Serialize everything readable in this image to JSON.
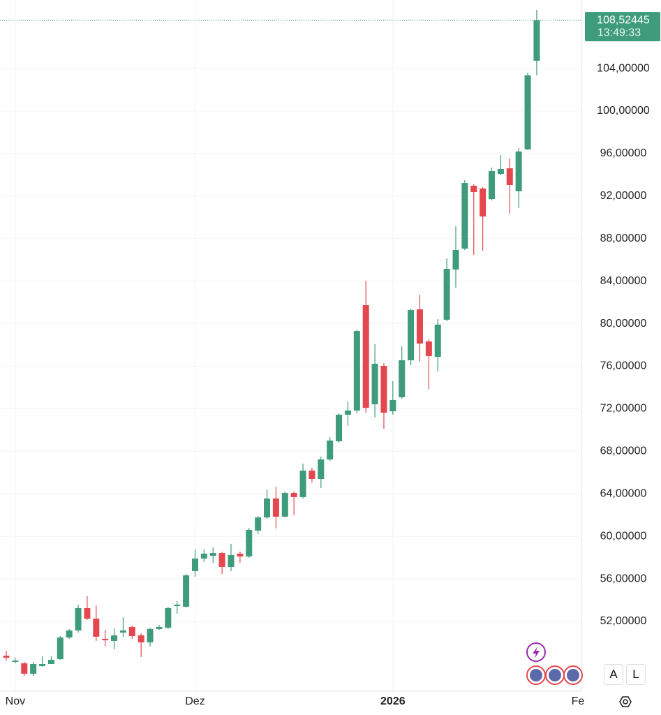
{
  "chart_data": {
    "type": "candlestick",
    "categories": [
      null,
      "Nov",
      null,
      null,
      null,
      null,
      null,
      null,
      null,
      null,
      null,
      null,
      null,
      null,
      null,
      null,
      null,
      null,
      null,
      null,
      null,
      "Dez",
      null,
      null,
      null,
      null,
      null,
      null,
      null,
      null,
      null,
      null,
      null,
      null,
      null,
      null,
      null,
      null,
      null,
      null,
      null,
      null,
      null,
      "2026",
      null,
      null,
      null,
      null,
      null,
      null,
      null,
      null,
      null,
      null,
      null,
      null,
      null,
      null,
      null,
      null,
      null,
      null,
      null,
      null,
      "Fe"
    ],
    "open": [
      48.78,
      48.19,
      48.06,
      47.08,
      47.8,
      47.99,
      48.45,
      50.49,
      51.15,
      53.25,
      52.26,
      50.36,
      50.16,
      50.95,
      51.47,
      50.69,
      50.03,
      51.28,
      51.41,
      53.44,
      53.38,
      56.73,
      57.91,
      58.17,
      58.43,
      57.12,
      58.37,
      58.11,
      60.54,
      61.78,
      63.56,
      61.85,
      64.08,
      63.69,
      66.18,
      65.39,
      67.23,
      68.94,
      71.44,
      71.83,
      81.74,
      72.42,
      76.03,
      71.76,
      73.08,
      76.56,
      81.35,
      78.33,
      76.88,
      80.37,
      85.09,
      87.06,
      92.97,
      92.71,
      91.72,
      94.09,
      94.61,
      92.45,
      96.39,
      104.73,
      null,
      null,
      null,
      null,
      null
    ],
    "high": [
      49.24,
      48.59,
      48.19,
      48.19,
      48.72,
      48.72,
      50.62,
      51.28,
      53.58,
      54.36,
      53.51,
      51.21,
      51.34,
      52.39,
      51.61,
      50.88,
      51.41,
      51.67,
      53.38,
      53.9,
      56.46,
      58.76,
      58.76,
      58.96,
      58.57,
      59.29,
      58.57,
      60.8,
      61.91,
      64.41,
      64.67,
      64.21,
      64.21,
      66.84,
      66.45,
      67.5,
      69.33,
      71.57,
      72.68,
      79.45,
      84.04,
      78.07,
      76.3,
      74.59,
      77.87,
      81.42,
      82.73,
      78.53,
      80.43,
      86.14,
      89.16,
      93.5,
      93.1,
      92.84,
      94.68,
      95.86,
      95.53,
      96.52,
      103.61,
      109.52,
      null,
      null,
      null,
      null,
      null
    ],
    "low": [
      48.32,
      48.06,
      46.88,
      46.88,
      47.73,
      47.99,
      48.39,
      50.36,
      50.95,
      52.13,
      50.16,
      49.64,
      49.37,
      50.56,
      50.36,
      48.65,
      49.64,
      51.21,
      51.28,
      52.72,
      53.31,
      56.2,
      57.58,
      57.52,
      56.46,
      56.73,
      57.52,
      57.98,
      60.21,
      61.65,
      60.73,
      61.78,
      61.98,
      63.56,
      65.07,
      64.54,
      67.1,
      68.81,
      70.38,
      71.57,
      71.63,
      71.17,
      70.12,
      71.44,
      72.95,
      76.1,
      76.43,
      73.86,
      75.51,
      80.23,
      83.39,
      86.93,
      86.47,
      86.87,
      91.59,
      93.96,
      90.35,
      90.87,
      96.32,
      103.35,
      null,
      null,
      null,
      null,
      null
    ],
    "close": [
      48.59,
      48.32,
      47.08,
      47.99,
      47.99,
      48.39,
      50.49,
      51.15,
      53.25,
      52.26,
      50.56,
      50.23,
      50.69,
      51.15,
      50.62,
      50.03,
      51.28,
      51.47,
      53.25,
      53.58,
      56.33,
      57.91,
      58.37,
      58.43,
      57.12,
      58.24,
      58.11,
      60.6,
      61.78,
      63.56,
      61.85,
      64.08,
      63.69,
      66.18,
      65.39,
      67.23,
      69.01,
      71.44,
      71.83,
      79.31,
      72.09,
      76.23,
      71.63,
      72.81,
      76.56,
      81.28,
      78.13,
      76.95,
      79.91,
      85.16,
      86.93,
      93.23,
      92.38,
      90.08,
      94.35,
      94.55,
      93.04,
      96.19,
      103.35,
      108.52445,
      null,
      null,
      null,
      null,
      null
    ],
    "up_color": "#3e9b7c",
    "down_color": "#e5474f",
    "ylim": [
      45.43,
      110.44
    ],
    "yticks": [
      {
        "value": 52,
        "label": "52,00000"
      },
      {
        "value": 56,
        "label": "56,00000"
      },
      {
        "value": 60,
        "label": "60,00000"
      },
      {
        "value": 64,
        "label": "64,00000"
      },
      {
        "value": 68,
        "label": "68,00000"
      },
      {
        "value": 72,
        "label": "72,00000"
      },
      {
        "value": 76,
        "label": "76,00000"
      },
      {
        "value": 80,
        "label": "80,00000"
      },
      {
        "value": 84,
        "label": "84,00000"
      },
      {
        "value": 88,
        "label": "88,00000"
      },
      {
        "value": 92,
        "label": "92,00000"
      },
      {
        "value": 96,
        "label": "96,00000"
      },
      {
        "value": 100,
        "label": "100,00000"
      },
      {
        "value": 104,
        "label": "104,00000"
      }
    ],
    "grid": true,
    "last_price": {
      "value": 108.52445,
      "label": "108,52445"
    },
    "last_time": "13:49:33"
  },
  "buttons": [
    "A",
    "L"
  ]
}
